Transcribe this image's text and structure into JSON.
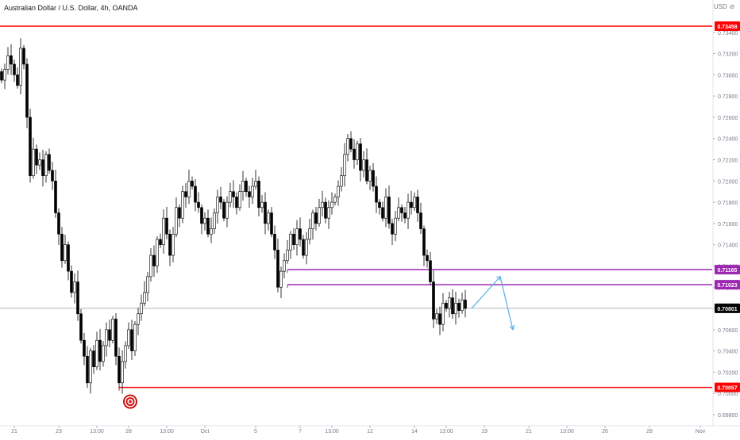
{
  "header": {
    "title": "Australian Dollar / U.S. Dollar, 4h, OANDA",
    "currency": "USD",
    "lock_icon": "lock-icon"
  },
  "colors": {
    "up_body": "#ffffff",
    "down_body": "#000000",
    "wick": "#000000",
    "red_level": "#ff0000",
    "purple_level": "#9c27b0",
    "current_line": "#b2b5be",
    "projection": "#55aee8",
    "target_icon": "#cc1414"
  },
  "chart_data": {
    "type": "candlestick",
    "symbol": "AUDUSD",
    "timeframe": "4h",
    "source": "OANDA",
    "y_axis": {
      "min": 0.698,
      "max": 0.736,
      "ticks": [
        0.734,
        0.732,
        0.73,
        0.728,
        0.726,
        0.724,
        0.722,
        0.72,
        0.718,
        0.716,
        0.714,
        0.712,
        0.71,
        0.708,
        0.706,
        0.704,
        0.702,
        0.7,
        0.698
      ]
    },
    "x_axis": {
      "labels": [
        "21",
        "23",
        "13:00",
        "28",
        "13:00",
        "Oct",
        "5",
        "7",
        "13:00",
        "12",
        "14",
        "13:00",
        "19",
        "21",
        "13:00",
        "26",
        "28",
        "Nov"
      ],
      "label_bar_index": [
        4,
        18,
        30,
        40,
        52,
        64,
        80,
        94,
        104,
        116,
        130,
        140,
        152,
        166,
        178,
        190,
        204,
        220
      ]
    },
    "levels": [
      {
        "price": 0.73458,
        "label": "0.73458",
        "color": "red",
        "style": "full"
      },
      {
        "price": 0.71165,
        "label": "0.71165",
        "color": "purple",
        "style": "zone",
        "start_bar": 90
      },
      {
        "price": 0.71023,
        "label": "0.71023",
        "color": "purple",
        "style": "zone",
        "start_bar": 90
      },
      {
        "price": 0.70057,
        "label": "0.70057",
        "color": "red",
        "style": "from",
        "start_bar": 37
      }
    ],
    "current_price": {
      "price": 0.70801,
      "label": "0.70801"
    },
    "projection": [
      {
        "bar": 148,
        "price": 0.708
      },
      {
        "bar": 157,
        "price": 0.711
      },
      {
        "bar": 161,
        "price": 0.706
      }
    ],
    "closes": [
      0.7295,
      0.7305,
      0.7318,
      0.731,
      0.73,
      0.729,
      0.7325,
      0.731,
      0.726,
      0.7205,
      0.723,
      0.7215,
      0.722,
      0.7205,
      0.7225,
      0.721,
      0.72,
      0.717,
      0.715,
      0.7125,
      0.714,
      0.7115,
      0.7095,
      0.7105,
      0.7075,
      0.705,
      0.7035,
      0.701,
      0.704,
      0.7025,
      0.705,
      0.703,
      0.7045,
      0.706,
      0.705,
      0.707,
      0.7035,
      0.701,
      0.703,
      0.7045,
      0.706,
      0.704,
      0.7065,
      0.7075,
      0.7085,
      0.7095,
      0.711,
      0.713,
      0.712,
      0.7145,
      0.714,
      0.7165,
      0.715,
      0.713,
      0.715,
      0.7175,
      0.7165,
      0.719,
      0.7185,
      0.72,
      0.7195,
      0.718,
      0.7175,
      0.716,
      0.7165,
      0.715,
      0.7155,
      0.717,
      0.7185,
      0.718,
      0.7165,
      0.718,
      0.719,
      0.7185,
      0.7175,
      0.719,
      0.72,
      0.719,
      0.7185,
      0.7195,
      0.72,
      0.7175,
      0.718,
      0.716,
      0.717,
      0.715,
      0.7135,
      0.71,
      0.7115,
      0.7125,
      0.7135,
      0.715,
      0.714,
      0.7155,
      0.7145,
      0.713,
      0.7145,
      0.7155,
      0.717,
      0.716,
      0.7175,
      0.718,
      0.7165,
      0.7175,
      0.718,
      0.7185,
      0.7195,
      0.7205,
      0.7225,
      0.724,
      0.723,
      0.722,
      0.7235,
      0.721,
      0.722,
      0.72,
      0.721,
      0.7195,
      0.718,
      0.7175,
      0.7165,
      0.7185,
      0.716,
      0.715,
      0.7165,
      0.7175,
      0.717,
      0.7165,
      0.718,
      0.7175,
      0.7185,
      0.717,
      0.7155,
      0.713,
      0.7125,
      0.7105,
      0.707,
      0.7075,
      0.7065,
      0.7085,
      0.708,
      0.709,
      0.7075,
      0.7085,
      0.7078,
      0.7088,
      0.708
    ]
  }
}
